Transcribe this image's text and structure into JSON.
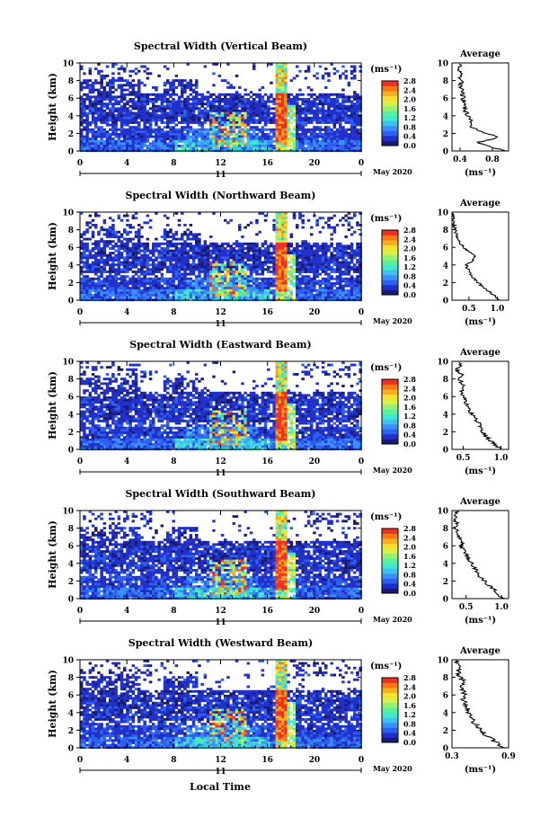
{
  "figure": {
    "month_label": "May 2020",
    "day_label": "11",
    "xlabel": "Local Time"
  },
  "colorbar": {
    "unit": "(ms⁻¹)",
    "ticks": [
      "0.0",
      "0.4",
      "0.8",
      "1.2",
      "1.6",
      "2.0",
      "2.4",
      "2.8"
    ],
    "colors": [
      "#1a1a6e",
      "#2030c8",
      "#2e5ff0",
      "#3a90f8",
      "#3fc0f0",
      "#3ee8d0",
      "#58f0a0",
      "#98f070",
      "#d8f048",
      "#f8e030",
      "#f8b020",
      "#f87818",
      "#f03020"
    ]
  },
  "chart_data": [
    {
      "type": "heatmap",
      "title": "Spectral Width (Vertical Beam)",
      "xlabel": "",
      "ylabel": "Height (km)",
      "xlim": [
        0,
        24
      ],
      "ylim": [
        0,
        10
      ],
      "xticks": [
        "0",
        "4",
        "8",
        "12",
        "16",
        "20",
        "0"
      ],
      "yticks": [
        "0",
        "2",
        "4",
        "6",
        "8",
        "10"
      ],
      "zlim": [
        0.0,
        2.8
      ],
      "avg": {
        "title": "Average",
        "xlabel": "(ms⁻¹)",
        "xlim": [
          0.3,
          1.0
        ],
        "xticks": [
          "0.4",
          "0.8"
        ],
        "xtick_values": [
          0.4,
          0.8
        ],
        "yticks": [
          "0",
          "2",
          "4",
          "6",
          "8",
          "10"
        ],
        "profile": [
          [
            0.0,
            0.95
          ],
          [
            0.5,
            0.78
          ],
          [
            1.0,
            0.62
          ],
          [
            1.5,
            0.86
          ],
          [
            2.0,
            0.74
          ],
          [
            2.5,
            0.58
          ],
          [
            3.0,
            0.52
          ],
          [
            3.5,
            0.54
          ],
          [
            4.0,
            0.5
          ],
          [
            4.5,
            0.47
          ],
          [
            5.0,
            0.46
          ],
          [
            5.5,
            0.45
          ],
          [
            6.0,
            0.44
          ],
          [
            6.5,
            0.43
          ],
          [
            7.0,
            0.42
          ],
          [
            7.5,
            0.4
          ],
          [
            8.0,
            0.42
          ],
          [
            8.5,
            0.39
          ],
          [
            9.0,
            0.4
          ],
          [
            9.5,
            0.38
          ],
          [
            10.0,
            0.4
          ]
        ]
      }
    },
    {
      "type": "heatmap",
      "title": "Spectral Width (Northward Beam)",
      "xlabel": "",
      "ylabel": "Height (km)",
      "xlim": [
        0,
        24
      ],
      "ylim": [
        0,
        10
      ],
      "xticks": [
        "0",
        "4",
        "8",
        "12",
        "16",
        "20",
        "0"
      ],
      "yticks": [
        "0",
        "2",
        "4",
        "6",
        "8",
        "10"
      ],
      "zlim": [
        0.0,
        2.8
      ],
      "avg": {
        "title": "Average",
        "xlabel": "(ms⁻¹)",
        "xlim": [
          0.2,
          1.2
        ],
        "xticks": [
          "0.5",
          "1.0"
        ],
        "xtick_values": [
          0.5,
          1.0
        ],
        "yticks": [
          "0",
          "2",
          "4",
          "6",
          "8",
          "10"
        ],
        "profile": [
          [
            0.0,
            1.05
          ],
          [
            0.5,
            0.95
          ],
          [
            1.0,
            0.85
          ],
          [
            1.5,
            0.74
          ],
          [
            2.0,
            0.66
          ],
          [
            2.5,
            0.58
          ],
          [
            3.0,
            0.52
          ],
          [
            3.5,
            0.48
          ],
          [
            4.0,
            0.46
          ],
          [
            4.5,
            0.56
          ],
          [
            5.0,
            0.62
          ],
          [
            5.5,
            0.52
          ],
          [
            6.0,
            0.4
          ],
          [
            6.5,
            0.34
          ],
          [
            7.0,
            0.3
          ],
          [
            7.5,
            0.28
          ],
          [
            8.0,
            0.25
          ],
          [
            8.5,
            0.24
          ],
          [
            9.0,
            0.22
          ],
          [
            9.5,
            0.22
          ],
          [
            10.0,
            0.22
          ]
        ]
      }
    },
    {
      "type": "heatmap",
      "title": "Spectral Width (Eastward Beam)",
      "xlabel": "",
      "ylabel": "Height (km)",
      "xlim": [
        0,
        24
      ],
      "ylim": [
        0,
        10
      ],
      "xticks": [
        "0",
        "4",
        "8",
        "12",
        "16",
        "20",
        "0"
      ],
      "yticks": [
        "0",
        "2",
        "4",
        "6",
        "8",
        "10"
      ],
      "zlim": [
        0.0,
        2.8
      ],
      "avg": {
        "title": "Average",
        "xlabel": "(ms⁻¹)",
        "xlim": [
          0.35,
          1.1
        ],
        "xticks": [
          "0.5",
          "1.0"
        ],
        "xtick_values": [
          0.5,
          1.0
        ],
        "yticks": [
          "0",
          "2",
          "4",
          "6",
          "8",
          "10"
        ],
        "profile": [
          [
            0.0,
            1.0
          ],
          [
            0.5,
            0.92
          ],
          [
            1.0,
            0.86
          ],
          [
            1.5,
            0.8
          ],
          [
            2.0,
            0.76
          ],
          [
            2.5,
            0.72
          ],
          [
            3.0,
            0.7
          ],
          [
            3.5,
            0.66
          ],
          [
            4.0,
            0.62
          ],
          [
            4.5,
            0.58
          ],
          [
            5.0,
            0.56
          ],
          [
            5.5,
            0.52
          ],
          [
            6.0,
            0.5
          ],
          [
            6.5,
            0.46
          ],
          [
            7.0,
            0.52
          ],
          [
            7.5,
            0.48
          ],
          [
            8.0,
            0.44
          ],
          [
            8.5,
            0.48
          ],
          [
            9.0,
            0.42
          ],
          [
            9.5,
            0.46
          ],
          [
            10.0,
            0.46
          ]
        ]
      }
    },
    {
      "type": "heatmap",
      "title": "Spectral Width (Southward Beam)",
      "xlabel": "",
      "ylabel": "Height (km)",
      "xlim": [
        0,
        24
      ],
      "ylim": [
        0,
        10
      ],
      "xticks": [
        "0",
        "4",
        "8",
        "12",
        "16",
        "20",
        "0"
      ],
      "yticks": [
        "0",
        "2",
        "4",
        "6",
        "8",
        "10"
      ],
      "zlim": [
        0.0,
        2.8
      ],
      "avg": {
        "title": "Average",
        "xlabel": "(ms⁻¹)",
        "xlim": [
          0.3,
          1.1
        ],
        "xticks": [
          "0.5",
          "1.0"
        ],
        "xtick_values": [
          0.5,
          1.0
        ],
        "yticks": [
          "0",
          "2",
          "4",
          "6",
          "8",
          "10"
        ],
        "profile": [
          [
            0.0,
            1.02
          ],
          [
            0.5,
            0.96
          ],
          [
            1.0,
            0.9
          ],
          [
            1.5,
            0.82
          ],
          [
            2.0,
            0.76
          ],
          [
            2.5,
            0.7
          ],
          [
            3.0,
            0.66
          ],
          [
            3.5,
            0.62
          ],
          [
            4.0,
            0.58
          ],
          [
            4.5,
            0.54
          ],
          [
            5.0,
            0.5
          ],
          [
            5.5,
            0.46
          ],
          [
            6.0,
            0.42
          ],
          [
            6.5,
            0.45
          ],
          [
            7.0,
            0.4
          ],
          [
            7.5,
            0.38
          ],
          [
            8.0,
            0.34
          ],
          [
            8.5,
            0.38
          ],
          [
            9.0,
            0.34
          ],
          [
            9.5,
            0.36
          ],
          [
            10.0,
            0.38
          ]
        ]
      }
    },
    {
      "type": "heatmap",
      "title": "Spectral Width (Westward Beam)",
      "xlabel": "Local Time",
      "ylabel": "Height (km)",
      "xlim": [
        0,
        24
      ],
      "ylim": [
        0,
        10
      ],
      "xticks": [
        "0",
        "4",
        "8",
        "12",
        "16",
        "20",
        "0"
      ],
      "yticks": [
        "0",
        "2",
        "4",
        "6",
        "8",
        "10"
      ],
      "zlim": [
        0.0,
        2.8
      ],
      "avg": {
        "title": "Average",
        "xlabel": "(ms⁻¹)",
        "xlim": [
          0.3,
          0.9
        ],
        "xticks": [
          "0.3",
          "0.9"
        ],
        "xtick_values": [
          0.3,
          0.9
        ],
        "yticks": [
          "0",
          "2",
          "4",
          "6",
          "8",
          "10"
        ],
        "profile": [
          [
            0.0,
            0.85
          ],
          [
            0.5,
            0.78
          ],
          [
            1.0,
            0.72
          ],
          [
            1.5,
            0.66
          ],
          [
            2.0,
            0.6
          ],
          [
            2.5,
            0.56
          ],
          [
            3.0,
            0.52
          ],
          [
            3.5,
            0.5
          ],
          [
            4.0,
            0.48
          ],
          [
            4.5,
            0.46
          ],
          [
            5.0,
            0.44
          ],
          [
            5.5,
            0.42
          ],
          [
            6.0,
            0.45
          ],
          [
            6.5,
            0.41
          ],
          [
            7.0,
            0.4
          ],
          [
            7.5,
            0.42
          ],
          [
            8.0,
            0.39
          ],
          [
            8.5,
            0.37
          ],
          [
            9.0,
            0.38
          ],
          [
            9.5,
            0.36
          ],
          [
            10.0,
            0.36
          ]
        ]
      }
    }
  ]
}
